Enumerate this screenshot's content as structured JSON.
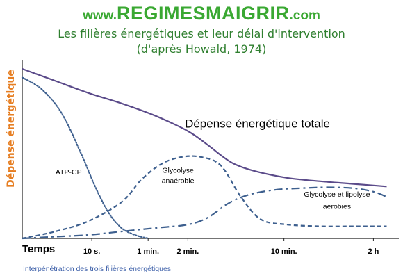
{
  "header": {
    "brand_prefix": "www.",
    "brand_name": "REGIMESMAIGRIR",
    "brand_suffix": ".com",
    "title": "Les filières énergétiques et leur délai d'intervention",
    "subtitle": "(d'après Howald, 1974)"
  },
  "caption": "Interpénétration des trois filières énergétiques",
  "colors": {
    "brand": "#3aa832",
    "title": "#2f7f2f",
    "ylabel": "#e67e22",
    "total_curve": "#5b4b8a",
    "system_curves": "#3d5f8e",
    "caption": "#3b5ea8"
  },
  "chart_data": {
    "type": "line",
    "title": "Les filières énergétiques et leur délai d'intervention",
    "subtitle": "(d'après Howald, 1974)",
    "xlabel": "Temps",
    "ylabel": "Dépense énergétique",
    "x_ticks": [
      "10 s.",
      "1 min.",
      "2 min.",
      "10 min.",
      "2 h"
    ],
    "x_tick_positions": [
      1.05,
      1.9,
      2.5,
      3.95,
      5.3
    ],
    "xlim": [
      0,
      5.6
    ],
    "ylim": [
      0,
      100
    ],
    "grid": false,
    "legend": "none",
    "series": [
      {
        "name": "Dépense énergétique totale",
        "style": "solid",
        "x": [
          0,
          0.5,
          1.0,
          1.5,
          2.0,
          2.5,
          2.8,
          3.0,
          3.2,
          3.5,
          4.0,
          4.5,
          5.0,
          5.5
        ],
        "y": [
          98,
          91,
          84,
          78,
          71,
          62,
          54,
          48,
          43,
          39,
          35,
          33,
          31.5,
          30
        ]
      },
      {
        "name": "ATP-CP",
        "style": "dotted",
        "x": [
          0,
          0.3,
          0.6,
          0.9,
          1.1,
          1.3,
          1.5,
          1.7,
          1.9
        ],
        "y": [
          93,
          86,
          72,
          48,
          30,
          15,
          6,
          2,
          0
        ]
      },
      {
        "name": "Glycolyse anaérobie",
        "style": "dashed",
        "x": [
          0,
          0.5,
          1.0,
          1.5,
          1.8,
          2.1,
          2.4,
          2.7,
          3.0,
          3.3,
          3.6,
          4.0,
          4.5,
          5.0,
          5.5
        ],
        "y": [
          0,
          4,
          10,
          21,
          34,
          43,
          47,
          47,
          42,
          24,
          11,
          8,
          7,
          7,
          7
        ]
      },
      {
        "name": "Glycolyse et lipolyse aérobies",
        "style": "dashdot",
        "x": [
          0,
          0.5,
          1.0,
          1.5,
          2.0,
          2.5,
          2.8,
          3.1,
          3.4,
          3.8,
          4.2,
          4.6,
          5.0,
          5.3,
          5.5
        ],
        "y": [
          0,
          1,
          2,
          4,
          6,
          8,
          12,
          20,
          25,
          28,
          29,
          29.5,
          29,
          27,
          24
        ]
      }
    ],
    "annotations": [
      {
        "text": "Dépense énergétique totale",
        "x": 3.55,
        "y": 64,
        "size": 17
      },
      {
        "text": "ATP-CP",
        "x": 0.7,
        "y": 37,
        "size": 10.5
      },
      {
        "text": "Glycolyse",
        "x": 2.35,
        "y": 38,
        "size": 10.5
      },
      {
        "text": "anaérobie",
        "x": 2.35,
        "y": 32,
        "size": 10.5
      },
      {
        "text": "Glycolyse et lipolyse",
        "x": 4.75,
        "y": 24,
        "size": 10.5
      },
      {
        "text": "aérobies",
        "x": 4.75,
        "y": 17,
        "size": 10.5
      }
    ]
  }
}
